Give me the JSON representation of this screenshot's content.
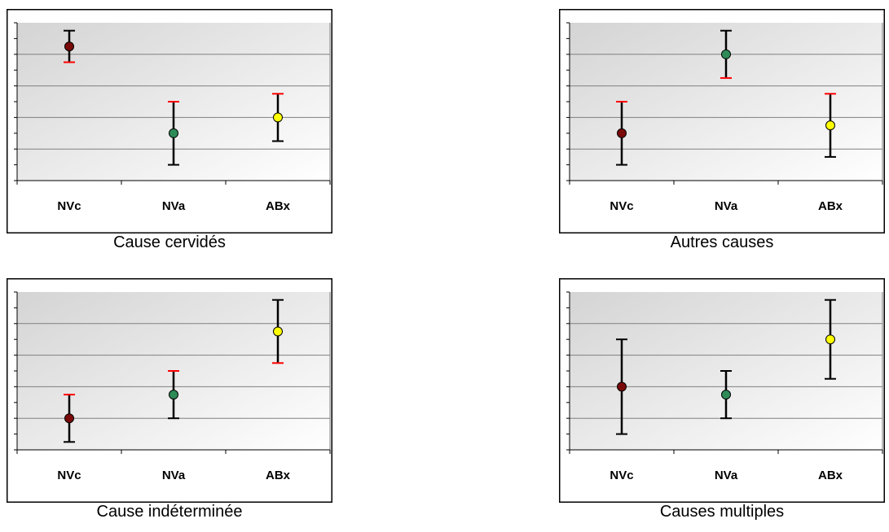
{
  "colors": {
    "NVc": "#7a0a0a",
    "NVa": "#2e8b57",
    "ABx": "#ffff00",
    "whisker_red": "#ff0000",
    "whisker_black": "#000000"
  },
  "chart_data": [
    {
      "type": "scatter",
      "caption": "Cause cervidés",
      "categories": [
        "NVc",
        "NVa",
        "ABx"
      ],
      "ylim": [
        0,
        1
      ],
      "grid": true,
      "points": [
        {
          "category": "NVc",
          "value": 0.85,
          "upper": 0.95,
          "lower": 0.75,
          "upper_whisker": "black",
          "lower_whisker": "red"
        },
        {
          "category": "NVa",
          "value": 0.3,
          "upper": 0.5,
          "lower": 0.1,
          "upper_whisker": "red",
          "lower_whisker": "black"
        },
        {
          "category": "ABx",
          "value": 0.4,
          "upper": 0.55,
          "lower": 0.25,
          "upper_whisker": "red",
          "lower_whisker": "black"
        }
      ]
    },
    {
      "type": "scatter",
      "caption": "Autres causes",
      "categories": [
        "NVc",
        "NVa",
        "ABx"
      ],
      "ylim": [
        0,
        1
      ],
      "grid": true,
      "points": [
        {
          "category": "NVc",
          "value": 0.3,
          "upper": 0.5,
          "lower": 0.1,
          "upper_whisker": "red",
          "lower_whisker": "black"
        },
        {
          "category": "NVa",
          "value": 0.8,
          "upper": 0.95,
          "lower": 0.65,
          "upper_whisker": "black",
          "lower_whisker": "red"
        },
        {
          "category": "ABx",
          "value": 0.35,
          "upper": 0.55,
          "lower": 0.15,
          "upper_whisker": "red",
          "lower_whisker": "black"
        }
      ]
    },
    {
      "type": "scatter",
      "caption": "Cause indéterminée",
      "categories": [
        "NVc",
        "NVa",
        "ABx"
      ],
      "ylim": [
        0,
        1
      ],
      "grid": true,
      "points": [
        {
          "category": "NVc",
          "value": 0.2,
          "upper": 0.35,
          "lower": 0.05,
          "upper_whisker": "red",
          "lower_whisker": "black"
        },
        {
          "category": "NVa",
          "value": 0.35,
          "upper": 0.5,
          "lower": 0.2,
          "upper_whisker": "red",
          "lower_whisker": "black"
        },
        {
          "category": "ABx",
          "value": 0.75,
          "upper": 0.95,
          "lower": 0.55,
          "upper_whisker": "black",
          "lower_whisker": "red"
        }
      ]
    },
    {
      "type": "scatter",
      "caption": "Causes multiples",
      "categories": [
        "NVc",
        "NVa",
        "ABx"
      ],
      "ylim": [
        0,
        1
      ],
      "grid": true,
      "points": [
        {
          "category": "NVc",
          "value": 0.4,
          "upper": 0.7,
          "lower": 0.1,
          "upper_whisker": "black",
          "lower_whisker": "black"
        },
        {
          "category": "NVa",
          "value": 0.35,
          "upper": 0.5,
          "lower": 0.2,
          "upper_whisker": "black",
          "lower_whisker": "black"
        },
        {
          "category": "ABx",
          "value": 0.7,
          "upper": 0.95,
          "lower": 0.45,
          "upper_whisker": "black",
          "lower_whisker": "black"
        }
      ]
    }
  ]
}
